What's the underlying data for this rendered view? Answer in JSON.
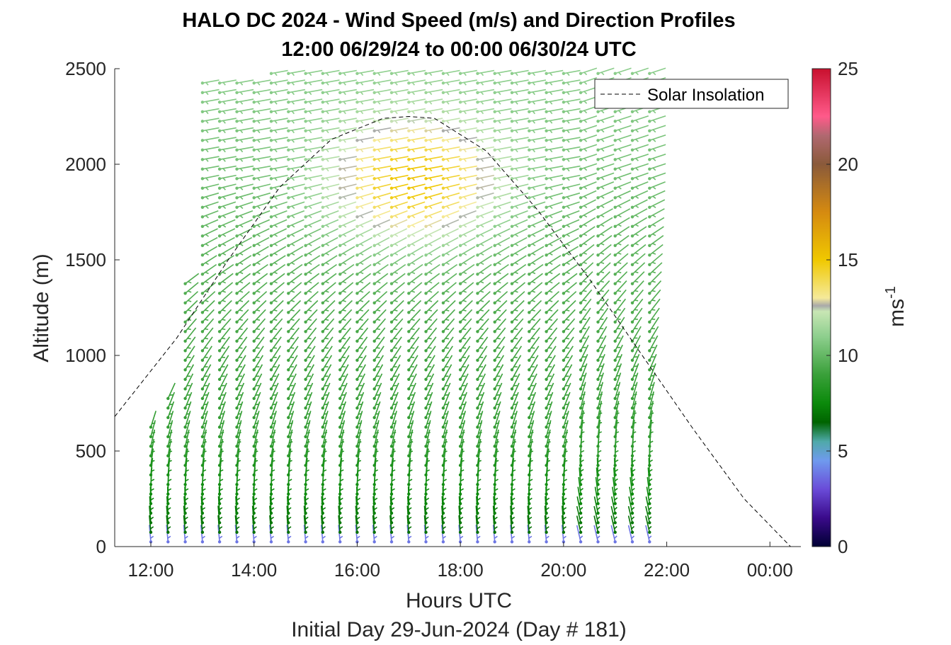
{
  "chart_data": {
    "type": "wind-barb profile",
    "title": "HALO DC 2024 - Wind Speed (m/s) and Direction Profiles",
    "subtitle": "12:00 06/29/24 to 00:00 06/30/24  UTC",
    "xlabel": "Hours UTC",
    "xlabel2": "Initial Day 29-Jun-2024 (Day # 181)",
    "ylabel": "Altitude (m)",
    "x_ticks": [
      "12:00",
      "14:00",
      "16:00",
      "18:00",
      "20:00",
      "22:00",
      "00:00"
    ],
    "x_tick_hours": [
      12,
      14,
      16,
      18,
      20,
      22,
      24
    ],
    "xlim_hours": [
      11.3,
      24.6
    ],
    "ylim": [
      0,
      2500
    ],
    "y_ticks": [
      "0",
      "500",
      "1000",
      "1500",
      "2000",
      "2500"
    ],
    "y_tick_values": [
      0,
      500,
      1000,
      1500,
      2000,
      2500
    ],
    "colorbar": {
      "label": "ms",
      "label_exponent": "-1",
      "range": [
        0,
        25
      ],
      "ticks": [
        "0",
        "5",
        "10",
        "15",
        "20",
        "25"
      ],
      "tick_values": [
        0,
        5,
        10,
        15,
        20,
        25
      ],
      "stops": [
        {
          "v": 0,
          "color": "#000033"
        },
        {
          "v": 1.5,
          "color": "#3a0a8a"
        },
        {
          "v": 3,
          "color": "#6a4bd8"
        },
        {
          "v": 4.5,
          "color": "#6f9aee"
        },
        {
          "v": 5.5,
          "color": "#4fa9a9"
        },
        {
          "v": 6.5,
          "color": "#006400"
        },
        {
          "v": 7.5,
          "color": "#0b8a0b"
        },
        {
          "v": 9,
          "color": "#3aa03a"
        },
        {
          "v": 11,
          "color": "#8ecf8e"
        },
        {
          "v": 12.3,
          "color": "#c8e6b4"
        },
        {
          "v": 12.6,
          "color": "#a9a9a9"
        },
        {
          "v": 13,
          "color": "#f5ea9a"
        },
        {
          "v": 15,
          "color": "#f0c800"
        },
        {
          "v": 17.5,
          "color": "#d58a10"
        },
        {
          "v": 20,
          "color": "#8a5a3a"
        },
        {
          "v": 21.5,
          "color": "#b06870"
        },
        {
          "v": 22.5,
          "color": "#ff5a8a"
        },
        {
          "v": 25,
          "color": "#c8102e"
        }
      ]
    },
    "legend": {
      "entries": [
        "Solar Insolation"
      ],
      "placement": "top-right"
    },
    "solar_insolation": {
      "style": "dashed",
      "color": "#000000",
      "x_hours": [
        11.3,
        12.5,
        13.5,
        14.5,
        15.5,
        16.5,
        17.0,
        17.5,
        18.5,
        19.5,
        20.5,
        21.5,
        22.5,
        23.5,
        24.4
      ],
      "y": [
        680,
        1090,
        1500,
        1880,
        2130,
        2240,
        2250,
        2240,
        2070,
        1760,
        1400,
        1010,
        620,
        250,
        0
      ]
    },
    "profiles": {
      "x_hours": [
        12.0,
        12.333,
        12.667,
        13.0,
        13.333,
        13.667,
        14.0,
        14.333,
        14.667,
        15.0,
        15.333,
        15.667,
        16.0,
        16.333,
        16.667,
        17.0,
        17.333,
        17.667,
        18.0,
        18.333,
        18.667,
        19.0,
        19.333,
        19.667,
        20.0,
        20.333,
        20.667,
        21.0,
        21.333,
        21.667
      ],
      "max_altitude_m": [
        650,
        800,
        1420,
        2460,
        2460,
        2460,
        2460,
        2500,
        2500,
        2500,
        2500,
        2500,
        2500,
        2500,
        2500,
        2500,
        2500,
        2500,
        2500,
        2500,
        2500,
        2500,
        2500,
        2500,
        2500,
        2500,
        2500,
        2500,
        2500,
        2500
      ],
      "altitude_step_m": 50
    }
  }
}
